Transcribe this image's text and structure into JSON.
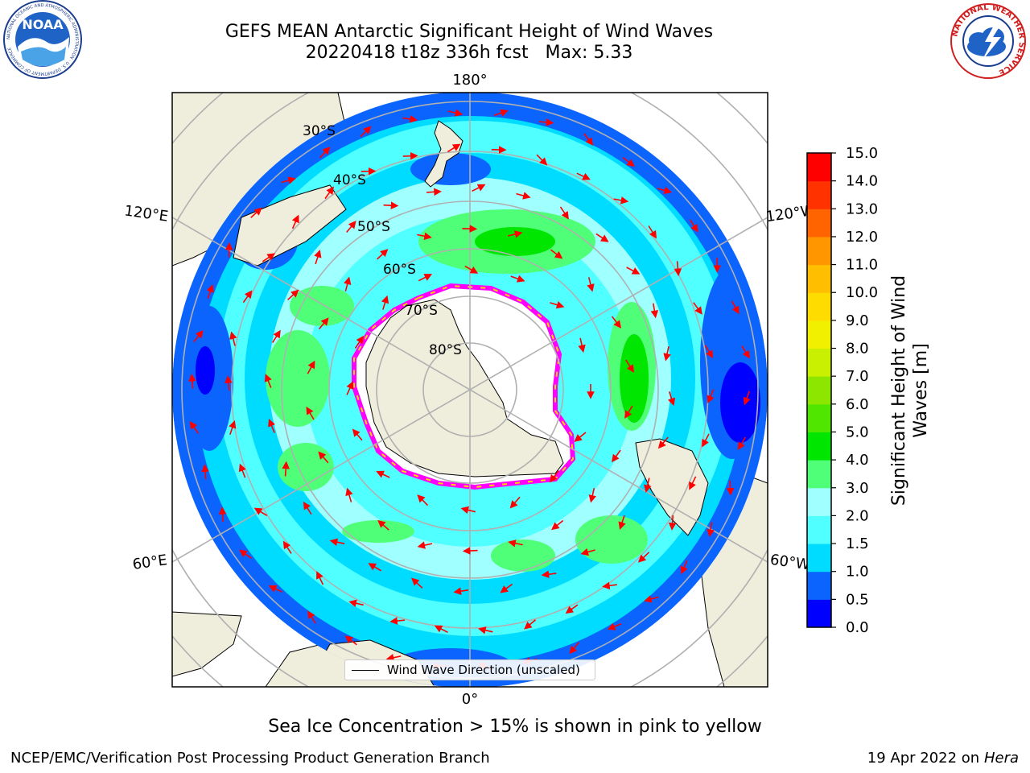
{
  "header": {
    "title_line1": "GEFS MEAN Antarctic Significant Height of Wind Waves",
    "title_line2": "20220418 t18z 336h fcst   Max: 5.33"
  },
  "logos": {
    "left": {
      "icon": "noaa-logo",
      "text": "NOAA",
      "ring_text": "NATIONAL OCEANIC AND ATMOSPHERIC ADMINISTRATION · U.S. DEPARTMENT OF COMMERCE"
    },
    "right": {
      "icon": "nws-logo",
      "ring_text": "NATIONAL WEATHER SERVICE"
    }
  },
  "map": {
    "projection": "south-polar-stereographic",
    "longitude_labels": {
      "top": "180°",
      "bottom": "0°",
      "upper_left": "120°E",
      "upper_right": "120°W",
      "lower_left": "60°E",
      "lower_right": "60°W"
    },
    "latitude_labels": [
      "30°S",
      "40°S",
      "50°S",
      "60°S",
      "70°S",
      "80°S"
    ],
    "land_color": "#efeedc",
    "ice_color": "#ffffff",
    "ice_edge_colors": [
      "#ff00ff",
      "#ffd700"
    ]
  },
  "legend": {
    "label": "Wind Wave Direction (unscaled)",
    "arrow_color": "#ff0000"
  },
  "colorbar": {
    "title_line1": "Significant Height of Wind",
    "title_line2": "Waves [m]",
    "ticks": [
      "0.0",
      "0.5",
      "1.0",
      "1.5",
      "2.0",
      "3.0",
      "4.0",
      "5.0",
      "6.0",
      "7.0",
      "8.0",
      "9.0",
      "10.0",
      "11.0",
      "12.0",
      "13.0",
      "14.0",
      "15.0"
    ],
    "colors": [
      "#0000ff",
      "#0c64ff",
      "#00dcff",
      "#50ffff",
      "#a0ffff",
      "#50ff78",
      "#00e600",
      "#50e600",
      "#8ce600",
      "#c8f000",
      "#f0f000",
      "#ffdc00",
      "#ffbe00",
      "#ff9600",
      "#ff6400",
      "#ff3200",
      "#ff0000"
    ]
  },
  "footer": {
    "note": "Sea Ice Concentration > 15% is shown in pink to yellow",
    "credit": "NCEP/EMC/Verification Post Processing Product Generation Branch",
    "date_prefix": "19 Apr 2022 on ",
    "date_machine": "Hera"
  }
}
